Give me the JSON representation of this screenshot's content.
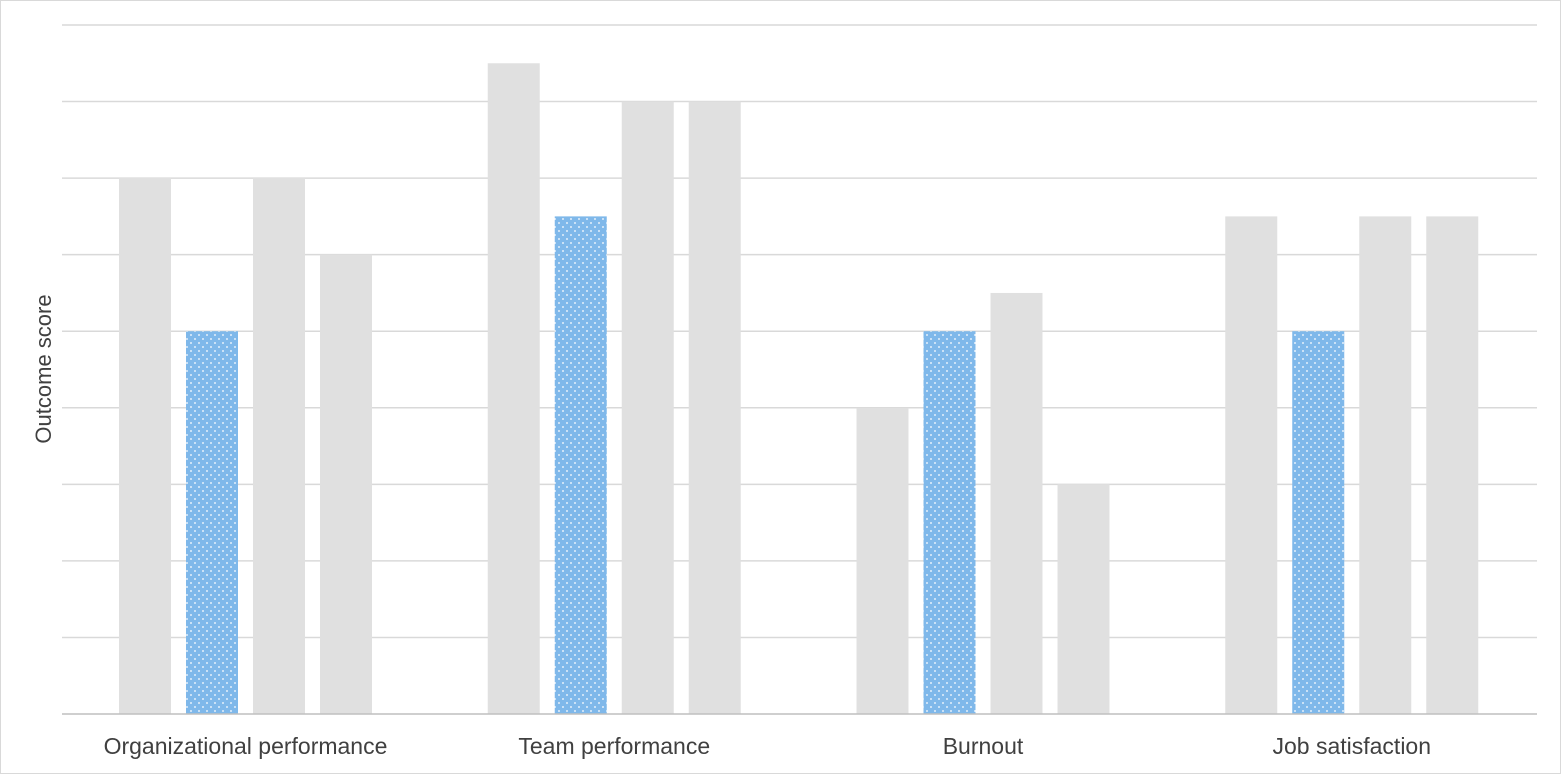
{
  "chart_data": {
    "type": "bar",
    "title": "",
    "xlabel": "",
    "ylabel": "Outcome score",
    "ylim": [
      0,
      9
    ],
    "gridlines": true,
    "legend": "none",
    "categories": [
      "Organizational performance",
      "Team performance",
      "Burnout",
      "Job satisfaction"
    ],
    "series": [
      {
        "values": [
          7,
          8.5,
          4,
          6.5
        ],
        "color": "#e0e0e0",
        "pattern": "solid"
      },
      {
        "values": [
          5,
          6.5,
          5,
          5
        ],
        "color": "#7fb8ea",
        "pattern": "dotted",
        "highlight": true
      },
      {
        "values": [
          7,
          8,
          5.5,
          6.5
        ],
        "color": "#e0e0e0",
        "pattern": "solid"
      },
      {
        "values": [
          6,
          8,
          3,
          6.5
        ],
        "color": "#e0e0e0",
        "pattern": "solid"
      }
    ],
    "colors": {
      "grid": "#d9d9d9",
      "axis": "#bfbfbf",
      "text": "#404040"
    }
  }
}
